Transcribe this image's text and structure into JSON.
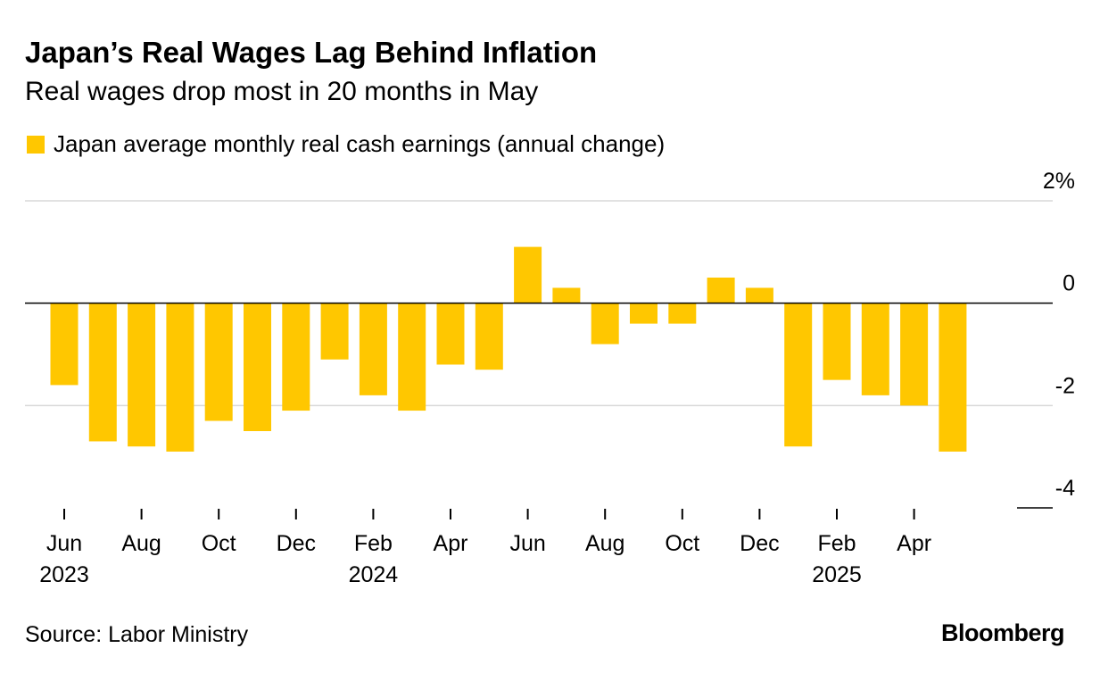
{
  "title": "Japan’s Real Wages Lag Behind Inflation",
  "subtitle": "Real wages drop most in 20 months in May",
  "source": "Source: Labor Ministry",
  "brand": "Bloomberg",
  "colors": {
    "bar": "#FFC700",
    "grid": "#d9d9d9",
    "axis": "#000000"
  },
  "chart_data": {
    "type": "bar",
    "legend": "Japan average monthly real cash earnings (annual change)",
    "categories": [
      "Jun 2023",
      "Jul 2023",
      "Aug 2023",
      "Sep 2023",
      "Oct 2023",
      "Nov 2023",
      "Dec 2023",
      "Jan 2024",
      "Feb 2024",
      "Mar 2024",
      "Apr 2024",
      "May 2024",
      "Jun 2024",
      "Jul 2024",
      "Aug 2024",
      "Sep 2024",
      "Oct 2024",
      "Nov 2024",
      "Dec 2024",
      "Jan 2025",
      "Feb 2025",
      "Mar 2025",
      "Apr 2025",
      "May 2025"
    ],
    "values": [
      -1.6,
      -2.7,
      -2.8,
      -2.9,
      -2.3,
      -2.5,
      -2.1,
      -1.1,
      -1.8,
      -2.1,
      -1.2,
      -1.3,
      1.1,
      0.3,
      -0.8,
      -0.4,
      -0.4,
      0.5,
      0.3,
      -2.8,
      -1.5,
      -1.8,
      -2.0,
      -2.9
    ],
    "ylim": [
      -4,
      2
    ],
    "yticks": [
      {
        "value": 2,
        "label": "2%"
      },
      {
        "value": 0,
        "label": "0"
      },
      {
        "value": -2,
        "label": "-2"
      },
      {
        "value": -4,
        "label": "-4"
      }
    ],
    "xticks": [
      {
        "index": 0,
        "month": "Jun",
        "year": "2023"
      },
      {
        "index": 2,
        "month": "Aug",
        "year": ""
      },
      {
        "index": 4,
        "month": "Oct",
        "year": ""
      },
      {
        "index": 6,
        "month": "Dec",
        "year": ""
      },
      {
        "index": 8,
        "month": "Feb",
        "year": "2024"
      },
      {
        "index": 10,
        "month": "Apr",
        "year": ""
      },
      {
        "index": 12,
        "month": "Jun",
        "year": ""
      },
      {
        "index": 14,
        "month": "Aug",
        "year": ""
      },
      {
        "index": 16,
        "month": "Oct",
        "year": ""
      },
      {
        "index": 18,
        "month": "Dec",
        "year": ""
      },
      {
        "index": 20,
        "month": "Feb",
        "year": "2025"
      },
      {
        "index": 22,
        "month": "Apr",
        "year": ""
      }
    ]
  }
}
